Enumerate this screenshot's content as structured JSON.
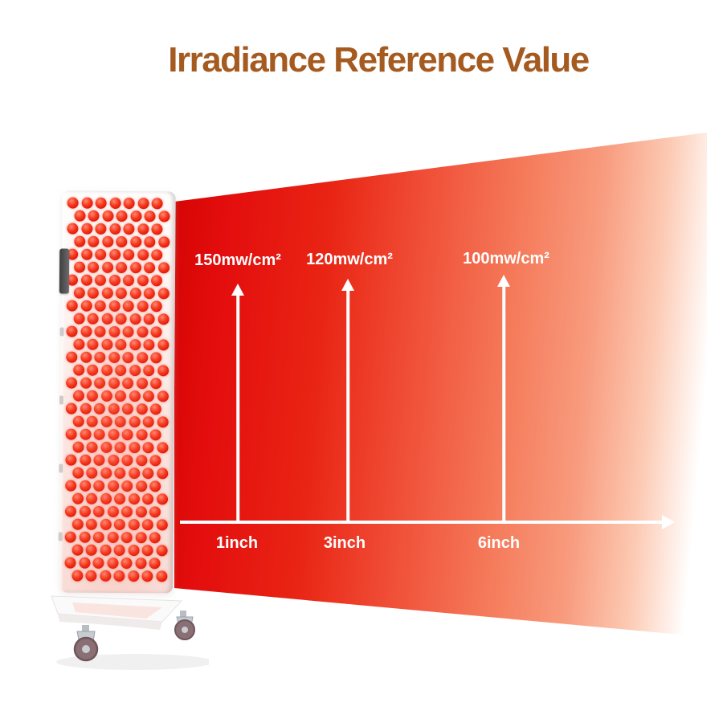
{
  "title": {
    "text": "Irradiance Reference Value",
    "color": "#a55a20"
  },
  "chart_data": {
    "type": "scatter",
    "title": "Irradiance Reference Value",
    "x": [
      1,
      3,
      6
    ],
    "x_unit": "inch",
    "x_tick_labels": [
      "1inch",
      "3inch",
      "6inch"
    ],
    "values": [
      150,
      120,
      100
    ],
    "value_unit": "mw/cm²",
    "point_labels": [
      "150mw/cm²",
      "120mw/cm²",
      "100mw/cm²"
    ],
    "xlabel": "",
    "ylabel": "",
    "grid": false,
    "legend": false,
    "axis_arrow": true,
    "annotation_style": "white upward arrows from distance axis to irradiance value labels over a red light beam that fades from deep red to white with distance"
  },
  "markers": [
    {
      "irradiance": "150mw/cm²",
      "distance": "1inch"
    },
    {
      "irradiance": "120mw/cm²",
      "distance": "3inch"
    },
    {
      "irradiance": "100mw/cm²",
      "distance": "6inch"
    }
  ],
  "colors": {
    "beam_start": "#d50404",
    "beam_mid": "#f05038",
    "beam_soft": "#f89b7e",
    "beam_end": "#ffffff",
    "arrow": "#ffffff",
    "led": "#ef2615",
    "title": "#a55a20"
  }
}
